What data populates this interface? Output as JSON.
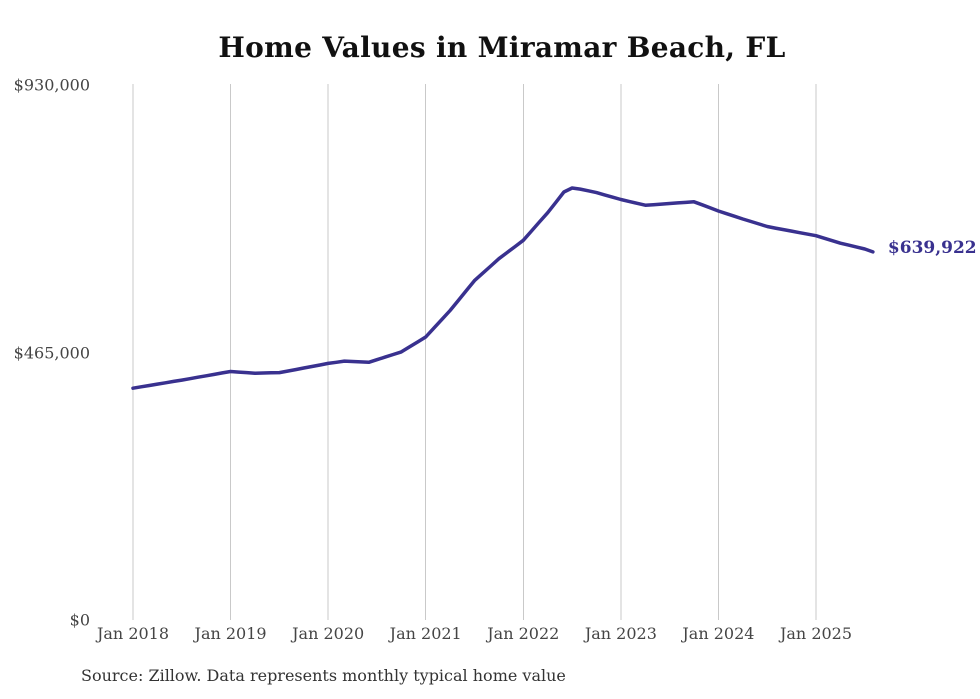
{
  "title": "Home Values in Miramar Beach, FL",
  "source_note": "Source: Zillow. Data represents monthly typical home value",
  "colors": {
    "line": "#39318F",
    "end_label": "#39318F",
    "grid": "#C9C9C9",
    "title": "#111111",
    "axis_label": "#454545",
    "source": "#333333",
    "background": "#FFFFFF"
  },
  "y_axis": {
    "ticks": [
      {
        "label": "$930,000",
        "value": 930000
      },
      {
        "label": "$465,000",
        "value": 465000
      },
      {
        "label": "$0",
        "value": 0
      }
    ]
  },
  "x_axis": {
    "ticks": [
      {
        "label": "Jan 2018",
        "month_index": 0
      },
      {
        "label": "Jan 2019",
        "month_index": 12
      },
      {
        "label": "Jan 2020",
        "month_index": 24
      },
      {
        "label": "Jan 2021",
        "month_index": 36
      },
      {
        "label": "Jan 2022",
        "month_index": 48
      },
      {
        "label": "Jan 2023",
        "month_index": 60
      },
      {
        "label": "Jan 2024",
        "month_index": 72
      },
      {
        "label": "Jan 2025",
        "month_index": 84
      }
    ]
  },
  "chart_data": {
    "type": "line",
    "title": "Home Values in Miramar Beach, FL",
    "series_name": "Typical home value (USD), monthly",
    "ylim": [
      0,
      930000
    ],
    "grid": "vertical-only",
    "legend": "none",
    "line_color": "#39318F",
    "end_label": "$639,922",
    "end_value": 639922,
    "x": [
      "2018-01",
      "2018-02",
      "2018-03",
      "2018-04",
      "2018-05",
      "2018-06",
      "2018-07",
      "2018-08",
      "2018-09",
      "2018-10",
      "2018-11",
      "2018-12",
      "2019-01",
      "2019-02",
      "2019-03",
      "2019-04",
      "2019-05",
      "2019-06",
      "2019-07",
      "2019-08",
      "2019-09",
      "2019-10",
      "2019-11",
      "2019-12",
      "2020-01",
      "2020-02",
      "2020-03",
      "2020-04",
      "2020-05",
      "2020-06",
      "2020-07",
      "2020-08",
      "2020-09",
      "2020-10",
      "2020-11",
      "2020-12",
      "2021-01",
      "2021-02",
      "2021-03",
      "2021-04",
      "2021-05",
      "2021-06",
      "2021-07",
      "2021-08",
      "2021-09",
      "2021-10",
      "2021-11",
      "2021-12",
      "2022-01",
      "2022-02",
      "2022-03",
      "2022-04",
      "2022-05",
      "2022-06",
      "2022-07",
      "2022-08",
      "2022-09",
      "2022-10",
      "2022-11",
      "2022-12",
      "2023-01",
      "2023-02",
      "2023-03",
      "2023-04",
      "2023-05",
      "2023-06",
      "2023-07",
      "2023-08",
      "2023-09",
      "2023-10",
      "2023-11",
      "2023-12",
      "2024-01",
      "2024-02",
      "2024-03",
      "2024-04",
      "2024-05",
      "2024-06",
      "2024-07",
      "2024-08",
      "2024-09",
      "2024-10",
      "2024-11",
      "2024-12",
      "2025-01",
      "2025-02",
      "2025-03",
      "2025-04",
      "2025-05",
      "2025-06",
      "2025-07",
      "2025-08"
    ],
    "values": [
      403000,
      405300,
      407600,
      410000,
      412300,
      414700,
      417000,
      419500,
      422000,
      424500,
      427000,
      429500,
      432000,
      431000,
      430000,
      429000,
      429300,
      429700,
      430000,
      432700,
      435300,
      438000,
      440700,
      443300,
      446000,
      448000,
      450000,
      449300,
      448700,
      448000,
      452500,
      457000,
      461500,
      466000,
      474700,
      483300,
      492000,
      507300,
      522700,
      538000,
      555300,
      572700,
      590000,
      602700,
      615300,
      628000,
      638700,
      649300,
      660000,
      676000,
      692000,
      708000,
      726000,
      744000,
      751000,
      749000,
      746000,
      743000,
      739000,
      735000,
      731000,
      727700,
      724300,
      721000,
      722000,
      723000,
      724000,
      725000,
      726000,
      727000,
      721700,
      716300,
      711000,
      706300,
      701700,
      697000,
      692700,
      688300,
      684000,
      681300,
      678700,
      676000,
      673300,
      670700,
      668000,
      663700,
      659300,
      655000,
      651700,
      648300,
      645000,
      639922
    ]
  }
}
